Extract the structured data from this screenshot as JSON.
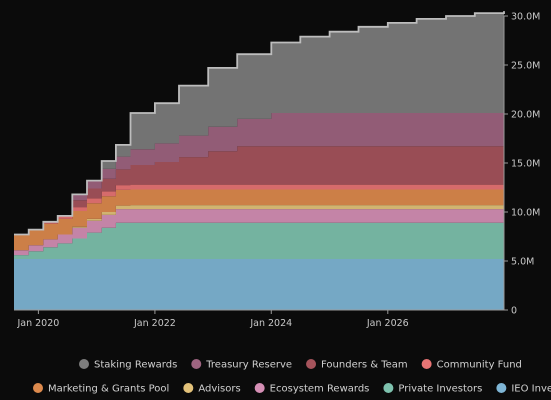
{
  "chart_data": {
    "type": "area",
    "stacked": true,
    "step": true,
    "x_axis": {
      "type": "date",
      "range": [
        "2019-08-01",
        "2027-12-31"
      ],
      "ticks": [
        {
          "value": "2020-01-01",
          "label": "Jan 2020"
        },
        {
          "value": "2022-01-01",
          "label": "Jan 2022"
        },
        {
          "value": "2024-01-01",
          "label": "Jan 2024"
        },
        {
          "value": "2026-01-01",
          "label": "Jan 2026"
        }
      ]
    },
    "y_axis": {
      "side": "right",
      "range": [
        0,
        30000000
      ],
      "ticks": [
        {
          "value": 0,
          "label": "0"
        },
        {
          "value": 5000000,
          "label": "5.0M"
        },
        {
          "value": 10000000,
          "label": "10.0M"
        },
        {
          "value": 15000000,
          "label": "15.0M"
        },
        {
          "value": 20000000,
          "label": "20.0M"
        },
        {
          "value": 25000000,
          "label": "25.0M"
        },
        {
          "value": 30000000,
          "label": "30.0M"
        }
      ]
    },
    "grid": false,
    "legend": {
      "placement": "bottom",
      "columns": 4
    },
    "x": [
      "2019-08-01",
      "2019-11-01",
      "2020-02-01",
      "2020-05-01",
      "2020-08-01",
      "2020-11-01",
      "2021-02-01",
      "2021-05-01",
      "2021-08-01",
      "2022-01-01",
      "2022-06-01",
      "2022-12-01",
      "2023-06-01",
      "2024-01-01",
      "2024-07-01",
      "2025-01-01",
      "2025-07-01",
      "2026-01-01",
      "2026-07-01",
      "2027-01-01",
      "2027-07-01",
      "2027-12-31"
    ],
    "series": [
      {
        "name": "IEO Investors",
        "color": "#7fb6d6",
        "values": [
          5.2,
          5.2,
          5.2,
          5.2,
          5.2,
          5.2,
          5.2,
          5.2,
          5.2,
          5.2,
          5.2,
          5.2,
          5.2,
          5.2,
          5.2,
          5.2,
          5.2,
          5.2,
          5.2,
          5.2,
          5.2,
          5.2
        ]
      },
      {
        "name": "Private Investors",
        "color": "#7ec2ae",
        "values": [
          0.4,
          0.8,
          1.2,
          1.6,
          2.1,
          2.7,
          3.2,
          3.7,
          3.7,
          3.7,
          3.7,
          3.7,
          3.7,
          3.7,
          3.7,
          3.7,
          3.7,
          3.7,
          3.7,
          3.7,
          3.7,
          3.7
        ]
      },
      {
        "name": "Ecosystem Rewards",
        "color": "#d58fb5",
        "values": [
          0.5,
          0.6,
          0.8,
          0.9,
          1.1,
          1.2,
          1.3,
          1.4,
          1.4,
          1.4,
          1.4,
          1.4,
          1.4,
          1.4,
          1.4,
          1.4,
          1.4,
          1.4,
          1.4,
          1.4,
          1.4,
          1.4
        ]
      },
      {
        "name": "Advisors",
        "color": "#e3c27a",
        "values": [
          0,
          0,
          0,
          0,
          0.1,
          0.2,
          0.3,
          0.35,
          0.4,
          0.4,
          0.4,
          0.4,
          0.4,
          0.4,
          0.4,
          0.4,
          0.4,
          0.4,
          0.4,
          0.4,
          0.4,
          0.4
        ]
      },
      {
        "name": "Marketing & Grants Pool",
        "color": "#dd8a4d",
        "values": [
          1.6,
          1.6,
          1.6,
          1.6,
          1.6,
          1.6,
          1.6,
          1.6,
          1.6,
          1.6,
          1.6,
          1.6,
          1.6,
          1.6,
          1.6,
          1.6,
          1.6,
          1.6,
          1.6,
          1.6,
          1.6,
          1.6
        ]
      },
      {
        "name": "Community Fund",
        "color": "#e87474",
        "values": [
          0,
          0,
          0.2,
          0.3,
          0.4,
          0.5,
          0.5,
          0.5,
          0.5,
          0.5,
          0.5,
          0.5,
          0.5,
          0.5,
          0.5,
          0.5,
          0.5,
          0.5,
          0.5,
          0.5,
          0.5,
          0.5
        ]
      },
      {
        "name": "Founders & Team",
        "color": "#a6545c",
        "values": [
          0,
          0,
          0,
          0,
          0.7,
          1.0,
          1.3,
          1.6,
          2.0,
          2.3,
          2.8,
          3.4,
          3.9,
          3.9,
          3.9,
          3.9,
          3.9,
          3.9,
          3.9,
          3.9,
          3.9,
          3.9
        ]
      },
      {
        "name": "Treasury Reserve",
        "color": "#9e6480",
        "values": [
          0,
          0,
          0,
          0,
          0.6,
          0.8,
          1.0,
          1.3,
          1.6,
          1.9,
          2.2,
          2.5,
          2.8,
          3.4,
          3.4,
          3.4,
          3.4,
          3.4,
          3.4,
          3.4,
          3.4,
          3.4
        ]
      },
      {
        "name": "Staking Rewards",
        "color": "#7d7d7d",
        "values": [
          0,
          0,
          0,
          0,
          0,
          0,
          0.8,
          1.2,
          3.7,
          4.1,
          5.1,
          6.0,
          6.6,
          7.2,
          7.8,
          8.3,
          8.8,
          9.2,
          9.6,
          9.9,
          10.2,
          10.4
        ]
      }
    ],
    "value_unit_multiplier": 1000000,
    "legend_order": [
      "Staking Rewards",
      "Treasury Reserve",
      "Founders & Team",
      "Community Fund",
      "Marketing & Grants Pool",
      "Advisors",
      "Ecosystem Rewards",
      "Private Investors",
      "IEO Investors"
    ]
  }
}
